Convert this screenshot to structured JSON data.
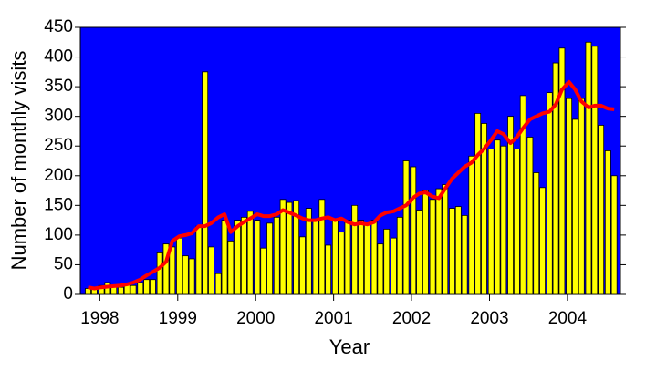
{
  "chart_data": {
    "type": "bar",
    "xlabel": "Year",
    "ylabel": "Number of monthly visits",
    "x": [
      1997.85,
      1997.93,
      1998.02,
      1998.1,
      1998.18,
      1998.27,
      1998.35,
      1998.43,
      1998.52,
      1998.6,
      1998.68,
      1998.77,
      1998.85,
      1998.93,
      1999.02,
      1999.1,
      1999.18,
      1999.27,
      1999.35,
      1999.43,
      1999.52,
      1999.6,
      1999.68,
      1999.77,
      1999.85,
      1999.93,
      2000.02,
      2000.1,
      2000.18,
      2000.27,
      2000.35,
      2000.43,
      2000.52,
      2000.6,
      2000.68,
      2000.77,
      2000.85,
      2000.93,
      2001.02,
      2001.1,
      2001.18,
      2001.27,
      2001.35,
      2001.43,
      2001.52,
      2001.6,
      2001.68,
      2001.77,
      2001.85,
      2001.93,
      2002.02,
      2002.1,
      2002.18,
      2002.27,
      2002.35,
      2002.43,
      2002.52,
      2002.6,
      2002.68,
      2002.77,
      2002.85,
      2002.93,
      2003.02,
      2003.1,
      2003.18,
      2003.27,
      2003.35,
      2003.43,
      2003.52,
      2003.6,
      2003.68,
      2003.77,
      2003.85,
      2003.93,
      2004.02,
      2004.1,
      2004.18,
      2004.27,
      2004.35,
      2004.43,
      2004.52,
      2004.6
    ],
    "series": [
      {
        "type": "bar",
        "color": "#ffff00",
        "values": [
          10,
          12,
          15,
          20,
          15,
          12,
          18,
          15,
          20,
          25,
          25,
          70,
          85,
          80,
          95,
          65,
          60,
          115,
          375,
          80,
          35,
          125,
          90,
          125,
          130,
          140,
          125,
          78,
          120,
          130,
          160,
          155,
          158,
          97,
          145,
          125,
          160,
          83,
          125,
          105,
          125,
          150,
          125,
          120,
          125,
          85,
          110,
          95,
          130,
          225,
          215,
          142,
          175,
          160,
          178,
          185,
          145,
          148,
          133,
          233,
          305,
          288,
          245,
          260,
          250,
          300,
          245,
          335,
          265,
          205,
          180,
          340,
          390,
          415,
          330,
          295,
          330,
          425,
          418,
          285,
          242,
          200
        ]
      },
      {
        "type": "line",
        "color": "#ff0000",
        "values": [
          12,
          10,
          12,
          13,
          14,
          15,
          17,
          20,
          25,
          32,
          38,
          45,
          55,
          90,
          98,
          100,
          103,
          115,
          115,
          120,
          130,
          135,
          105,
          115,
          122,
          128,
          135,
          132,
          132,
          135,
          142,
          138,
          133,
          128,
          125,
          125,
          128,
          130,
          125,
          128,
          122,
          118,
          120,
          118,
          122,
          133,
          138,
          140,
          145,
          150,
          163,
          170,
          172,
          165,
          162,
          178,
          195,
          205,
          215,
          222,
          235,
          245,
          260,
          275,
          270,
          255,
          265,
          280,
          295,
          300,
          305,
          308,
          320,
          345,
          358,
          345,
          325,
          315,
          318,
          318,
          313,
          312
        ]
      }
    ],
    "background": "#0000ff",
    "xlim": [
      1997.75,
      2004.68
    ],
    "xticks": [
      1998,
      1999,
      2000,
      2001,
      2002,
      2003,
      2004
    ],
    "ylim": [
      0,
      450
    ],
    "yticks": [
      0,
      50,
      100,
      150,
      200,
      250,
      300,
      350,
      400,
      450
    ]
  }
}
